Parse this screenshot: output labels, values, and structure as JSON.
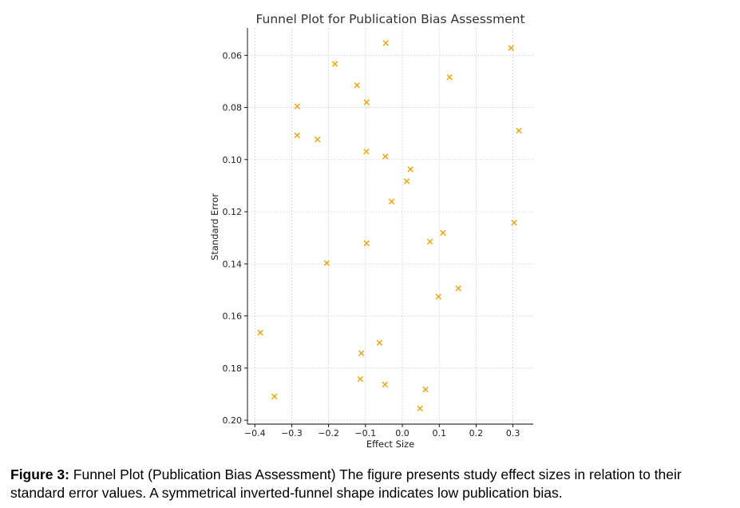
{
  "chart_data": {
    "type": "scatter",
    "title": "Funnel Plot for Publication Bias Assessment",
    "xlabel": "Effect Size",
    "ylabel": "Standard Error",
    "xlim": [
      -0.42,
      0.355
    ],
    "ylim": [
      0.2015,
      0.0495
    ],
    "y_inverted": true,
    "grid": true,
    "marker": "x",
    "marker_color": "#e6a817",
    "xticks": [
      -0.4,
      -0.3,
      -0.2,
      -0.1,
      0.0,
      0.1,
      0.2,
      0.3
    ],
    "xtick_labels": [
      "−0.4",
      "−0.3",
      "−0.2",
      "−0.1",
      "0.0",
      "0.1",
      "0.2",
      "0.3"
    ],
    "yticks": [
      0.06,
      0.08,
      0.1,
      0.12,
      0.14,
      0.16,
      0.18,
      0.2
    ],
    "ytick_labels": [
      "0.06",
      "0.08",
      "0.10",
      "0.12",
      "0.14",
      "0.16",
      "0.18",
      "0.20"
    ],
    "points": [
      {
        "x": -0.045,
        "y": 0.0553
      },
      {
        "x": 0.295,
        "y": 0.0572
      },
      {
        "x": -0.183,
        "y": 0.0633
      },
      {
        "x": 0.128,
        "y": 0.0684
      },
      {
        "x": -0.123,
        "y": 0.0715
      },
      {
        "x": -0.097,
        "y": 0.078
      },
      {
        "x": -0.285,
        "y": 0.0796
      },
      {
        "x": 0.316,
        "y": 0.0889
      },
      {
        "x": -0.285,
        "y": 0.0907
      },
      {
        "x": -0.23,
        "y": 0.0923
      },
      {
        "x": -0.098,
        "y": 0.0969
      },
      {
        "x": -0.046,
        "y": 0.0988
      },
      {
        "x": 0.022,
        "y": 0.1037
      },
      {
        "x": 0.012,
        "y": 0.1083
      },
      {
        "x": -0.029,
        "y": 0.1161
      },
      {
        "x": 0.303,
        "y": 0.1242
      },
      {
        "x": 0.11,
        "y": 0.1281
      },
      {
        "x": 0.075,
        "y": 0.1315
      },
      {
        "x": -0.097,
        "y": 0.1321
      },
      {
        "x": -0.205,
        "y": 0.1397
      },
      {
        "x": 0.152,
        "y": 0.1494
      },
      {
        "x": 0.098,
        "y": 0.1526
      },
      {
        "x": -0.385,
        "y": 0.1664
      },
      {
        "x": -0.062,
        "y": 0.1703
      },
      {
        "x": -0.111,
        "y": 0.1743
      },
      {
        "x": -0.114,
        "y": 0.1842
      },
      {
        "x": -0.047,
        "y": 0.1863
      },
      {
        "x": 0.063,
        "y": 0.1882
      },
      {
        "x": -0.347,
        "y": 0.1909
      },
      {
        "x": 0.048,
        "y": 0.1955
      }
    ]
  },
  "caption": {
    "label": "Figure 3:",
    "text": " Funnel Plot (Publication Bias Assessment) The figure presents study effect sizes in relation to their standard error values. A symmetrical inverted-funnel shape indicates low publication bias."
  }
}
